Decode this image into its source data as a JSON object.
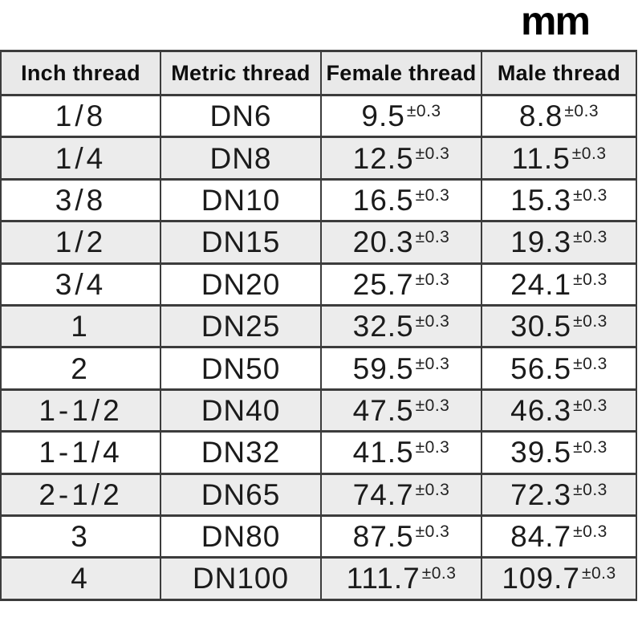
{
  "unit_label": "mm",
  "colors": {
    "header_bg": "#e9e9e9",
    "row_bg": "#ffffff",
    "row_alt_bg": "#ececec",
    "border": "#3c3c3c",
    "text": "#1b1b1b",
    "unit_text": "#000000"
  },
  "table": {
    "columns": [
      "Inch thread",
      "Metric thread",
      "Female thread",
      "Male thread"
    ],
    "rows": [
      {
        "inch": "1/8",
        "metric": "DN6",
        "female": "9.5",
        "female_tol": "±0.3",
        "male": "8.8",
        "male_tol": "±0.3"
      },
      {
        "inch": "1/4",
        "metric": "DN8",
        "female": "12.5",
        "female_tol": "±0.3",
        "male": "11.5",
        "male_tol": "±0.3"
      },
      {
        "inch": "3/8",
        "metric": "DN10",
        "female": "16.5",
        "female_tol": "±0.3",
        "male": "15.3",
        "male_tol": "±0.3"
      },
      {
        "inch": "1/2",
        "metric": "DN15",
        "female": "20.3",
        "female_tol": "±0.3",
        "male": "19.3",
        "male_tol": "±0.3"
      },
      {
        "inch": "3/4",
        "metric": "DN20",
        "female": "25.7",
        "female_tol": "±0.3",
        "male": "24.1",
        "male_tol": "±0.3"
      },
      {
        "inch": "1",
        "metric": "DN25",
        "female": "32.5",
        "female_tol": "±0.3",
        "male": "30.5",
        "male_tol": "±0.3"
      },
      {
        "inch": "2",
        "metric": "DN50",
        "female": "59.5",
        "female_tol": "±0.3",
        "male": "56.5",
        "male_tol": "±0.3"
      },
      {
        "inch": "1-1/2",
        "metric": "DN40",
        "female": "47.5",
        "female_tol": "±0.3",
        "male": "46.3",
        "male_tol": "±0.3"
      },
      {
        "inch": "1-1/4",
        "metric": "DN32",
        "female": "41.5",
        "female_tol": "±0.3",
        "male": "39.5",
        "male_tol": "±0.3"
      },
      {
        "inch": "2-1/2",
        "metric": "DN65",
        "female": "74.7",
        "female_tol": "±0.3",
        "male": "72.3",
        "male_tol": "±0.3"
      },
      {
        "inch": "3",
        "metric": "DN80",
        "female": "87.5",
        "female_tol": "±0.3",
        "male": "84.7",
        "male_tol": "±0.3"
      },
      {
        "inch": "4",
        "metric": "DN100",
        "female": "111.7",
        "female_tol": "±0.3",
        "male": "109.7",
        "male_tol": "±0.3"
      }
    ]
  },
  "chart_data": {
    "type": "table",
    "unit": "mm",
    "columns": [
      "Inch thread",
      "Metric thread",
      "Female thread",
      "Male thread"
    ],
    "rows": [
      [
        "1/8",
        "DN6",
        "9.5±0.3",
        "8.8±0.3"
      ],
      [
        "1/4",
        "DN8",
        "12.5±0.3",
        "11.5±0.3"
      ],
      [
        "3/8",
        "DN10",
        "16.5±0.3",
        "15.3±0.3"
      ],
      [
        "1/2",
        "DN15",
        "20.3±0.3",
        "19.3±0.3"
      ],
      [
        "3/4",
        "DN20",
        "25.7±0.3",
        "24.1±0.3"
      ],
      [
        "1",
        "DN25",
        "32.5±0.3",
        "30.5±0.3"
      ],
      [
        "2",
        "DN50",
        "59.5±0.3",
        "56.5±0.3"
      ],
      [
        "1-1/2",
        "DN40",
        "47.5±0.3",
        "46.3±0.3"
      ],
      [
        "1-1/4",
        "DN32",
        "41.5±0.3",
        "39.5±0.3"
      ],
      [
        "2-1/2",
        "DN65",
        "74.7±0.3",
        "72.3±0.3"
      ],
      [
        "3",
        "DN80",
        "87.5±0.3",
        "84.7±0.3"
      ],
      [
        "4",
        "DN100",
        "111.7±0.3",
        "109.7±0.3"
      ]
    ],
    "layout_hints": {
      "header_background": "#e9e9e9",
      "alternating_rows": true,
      "unit_label_position": "top-right"
    }
  }
}
